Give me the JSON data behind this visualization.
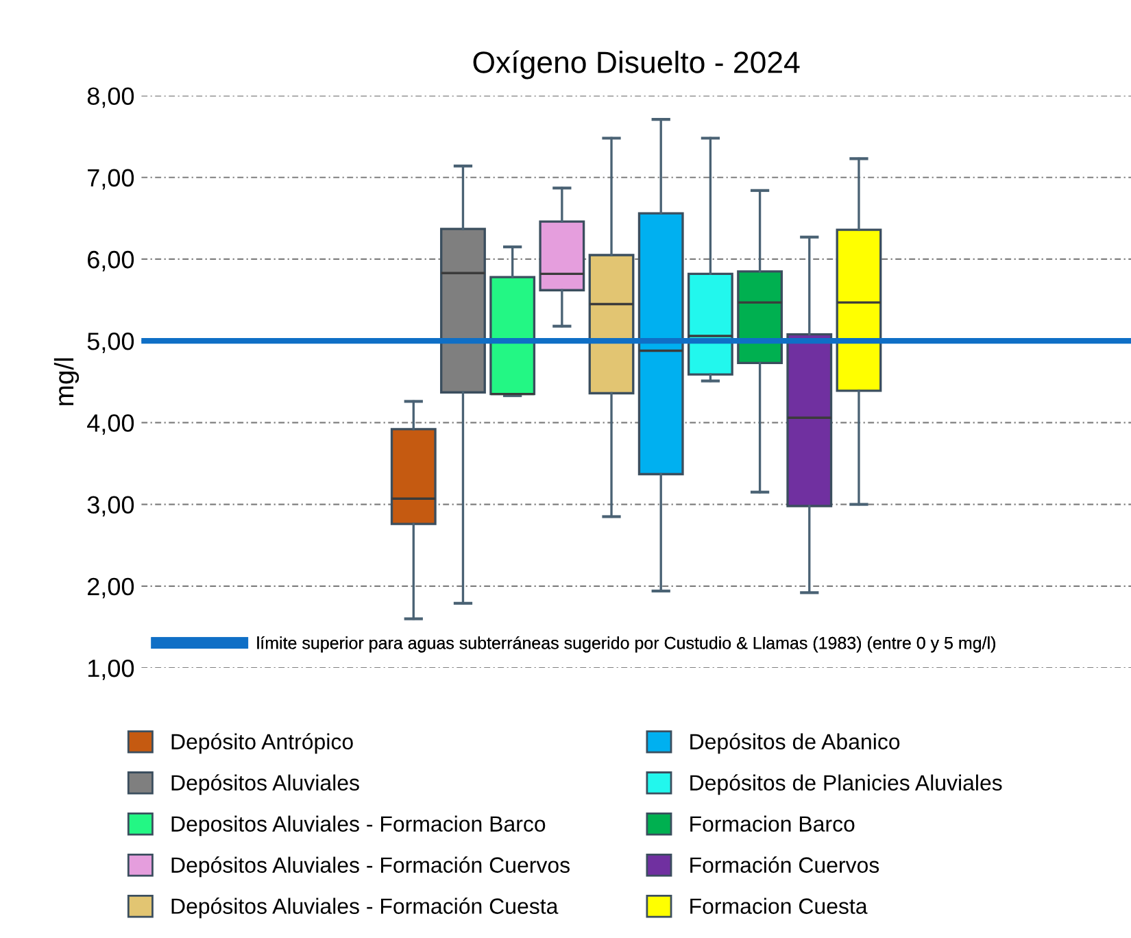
{
  "chart_data": {
    "type": "box",
    "title": "Oxígeno Disuelto - 2024",
    "ylabel": "mg/l",
    "categories": [
      null
    ],
    "ylim": [
      1,
      8
    ],
    "yticks": [
      {
        "value": 1,
        "label": "1,00"
      },
      {
        "value": 2,
        "label": "2,00"
      },
      {
        "value": 3,
        "label": "3,00"
      },
      {
        "value": 4,
        "label": "4,00"
      },
      {
        "value": 5,
        "label": "5,00"
      },
      {
        "value": 6,
        "label": "6,00"
      },
      {
        "value": 7,
        "label": "7,00"
      },
      {
        "value": 8,
        "label": "8,00"
      }
    ],
    "grid": "y",
    "legend": "bottom",
    "tick_labels": "y",
    "series": [
      {
        "name": "Depósito Antrópico",
        "color": "#c55a11",
        "boxes": [
          {
            "low": 1.6,
            "q1": 2.76,
            "median": 3.07,
            "q3": 3.92,
            "high": 4.26
          }
        ]
      },
      {
        "name": "Depósitos Aluviales",
        "color": "#7f7f7f",
        "boxes": [
          {
            "low": 1.79,
            "q1": 4.37,
            "median": 5.83,
            "q3": 6.37,
            "high": 7.14
          }
        ]
      },
      {
        "name": "Depositos Aluviales - Formacion Barco",
        "color": "#23f784",
        "boxes": [
          {
            "low": 4.33,
            "q1": 4.35,
            "median": 4.35,
            "q3": 5.78,
            "high": 6.15
          }
        ]
      },
      {
        "name": "Depósitos Aluviales - Formación Cuervos",
        "color": "#e59edd",
        "boxes": [
          {
            "low": 5.18,
            "q1": 5.62,
            "median": 5.82,
            "q3": 6.46,
            "high": 6.87
          }
        ]
      },
      {
        "name": "Depósitos Aluviales - Formación Cuesta",
        "color": "#e2c572",
        "boxes": [
          {
            "low": 2.85,
            "q1": 4.36,
            "median": 5.45,
            "q3": 6.05,
            "high": 7.48
          }
        ]
      },
      {
        "name": "Depósitos de Abanico",
        "color": "#00b0f0",
        "boxes": [
          {
            "low": 1.94,
            "q1": 3.37,
            "median": 4.88,
            "q3": 6.56,
            "high": 7.71
          }
        ]
      },
      {
        "name": "Depósitos de Planicies Aluviales",
        "color": "#22f7ed",
        "boxes": [
          {
            "low": 4.51,
            "q1": 4.59,
            "median": 5.06,
            "q3": 5.82,
            "high": 7.48
          }
        ]
      },
      {
        "name": "Formacion Barco",
        "color": "#00b050",
        "boxes": [
          {
            "low": 3.15,
            "q1": 4.73,
            "median": 5.47,
            "q3": 5.85,
            "high": 6.84
          }
        ]
      },
      {
        "name": "Formación Cuervos",
        "color": "#7030a0",
        "boxes": [
          {
            "low": 1.92,
            "q1": 2.98,
            "median": 4.06,
            "q3": 5.08,
            "high": 6.27
          }
        ]
      },
      {
        "name": "Formacion Cuesta",
        "color": "#ffff00",
        "boxes": [
          {
            "low": 3.0,
            "q1": 4.39,
            "median": 5.47,
            "q3": 6.36,
            "high": 7.23
          }
        ]
      }
    ],
    "ref_lines": [
      {
        "axis": "y",
        "value": 5,
        "label": "límite superior para aguas subterráneas sugerido por Custudio & Llamas (1983) (entre 0 y 5 mg/l)",
        "color": "#0f6fc6"
      }
    ]
  }
}
